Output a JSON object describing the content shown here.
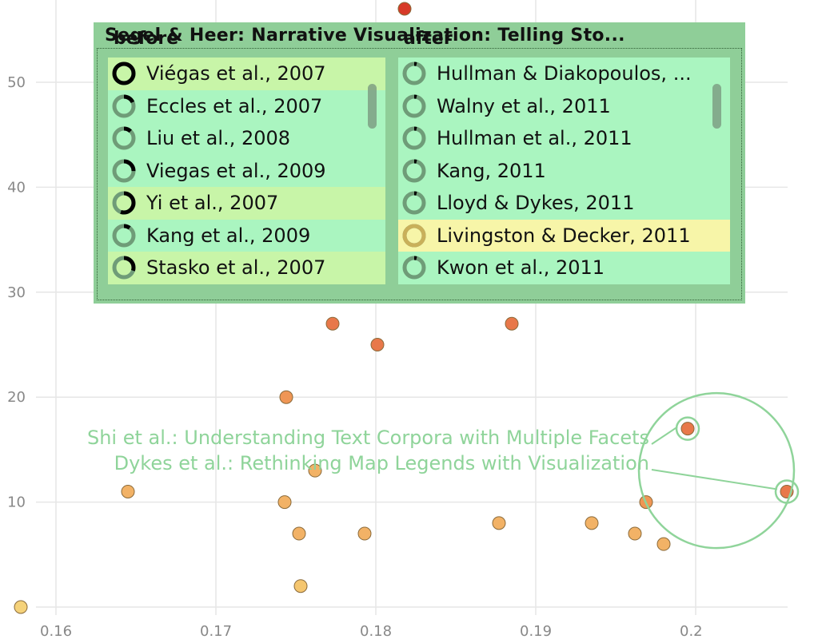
{
  "chart_data": {
    "type": "scatter",
    "xlim": [
      0.158,
      0.206
    ],
    "ylim": [
      0,
      57
    ],
    "xticks": [
      0.16,
      0.17,
      0.18,
      0.19,
      0.2
    ],
    "xtick_labels": [
      "0.16",
      "0.17",
      "0.18",
      "0.19",
      "0.2"
    ],
    "yticks": [
      0,
      10,
      20,
      30,
      40,
      50
    ],
    "ytick_labels": [
      "0",
      "10",
      "20",
      "30",
      "40",
      "50"
    ],
    "grid": true,
    "points": [
      {
        "x": 0.1578,
        "y": 0,
        "color": "#f5d27a"
      },
      {
        "x": 0.1645,
        "y": 11,
        "color": "#f2b266"
      },
      {
        "x": 0.1743,
        "y": 10,
        "color": "#f2b266"
      },
      {
        "x": 0.1744,
        "y": 20,
        "color": "#ef9655"
      },
      {
        "x": 0.1752,
        "y": 7,
        "color": "#f2b266"
      },
      {
        "x": 0.1753,
        "y": 2,
        "color": "#f5c66f"
      },
      {
        "x": 0.1762,
        "y": 13,
        "color": "#f2b266"
      },
      {
        "x": 0.1773,
        "y": 27,
        "color": "#e8784a"
      },
      {
        "x": 0.1793,
        "y": 7,
        "color": "#f2b266"
      },
      {
        "x": 0.1801,
        "y": 25,
        "color": "#e8784a"
      },
      {
        "x": 0.1818,
        "y": 57,
        "color": "#d73a28"
      },
      {
        "x": 0.1877,
        "y": 8,
        "color": "#f2b266"
      },
      {
        "x": 0.1885,
        "y": 27,
        "color": "#e8784a"
      },
      {
        "x": 0.1935,
        "y": 8,
        "color": "#f2b266"
      },
      {
        "x": 0.1962,
        "y": 7,
        "color": "#f2b266"
      },
      {
        "x": 0.1969,
        "y": 10,
        "color": "#ef9655"
      },
      {
        "x": 0.198,
        "y": 6,
        "color": "#f2b266"
      },
      {
        "x": 0.1995,
        "y": 17,
        "color": "#e8784a"
      },
      {
        "x": 0.2057,
        "y": 11,
        "color": "#e8784a"
      }
    ],
    "annotations": [
      {
        "text": "Shi et al.: Understanding Text Corpora with Multiple Facets",
        "x": 0.1995,
        "y": 17
      },
      {
        "text": "Dykes et al.: Rethinking Map Legends with Visualization",
        "x": 0.2057,
        "y": 11
      }
    ],
    "lens": {
      "x": 0.2013,
      "y": 13
    }
  },
  "colors": {
    "annotation": "#8fd49a",
    "panel": "#8fce98",
    "row": "#aaf5c0",
    "row_highlight_green": "#c8f5a8",
    "row_highlight_yellow": "#f7f5a8",
    "grid": "#e6e6e6",
    "axis_text": "#888888"
  },
  "panel": {
    "title": "Segel & Heer:  Narrative Visualization: Telling Sto...",
    "before_label": "before",
    "after_label": "after",
    "before": [
      {
        "label": "Viégas et al., 2007",
        "fill": 1.0,
        "highlight": "green"
      },
      {
        "label": "Eccles et al., 2007",
        "fill": 0.18,
        "highlight": ""
      },
      {
        "label": "Liu et al., 2008",
        "fill": 0.12,
        "highlight": ""
      },
      {
        "label": "Viegas et al., 2009",
        "fill": 0.25,
        "highlight": ""
      },
      {
        "label": "Yi et al., 2007",
        "fill": 0.55,
        "highlight": "green"
      },
      {
        "label": "Kang et al., 2009",
        "fill": 0.1,
        "highlight": ""
      },
      {
        "label": "Stasko et al., 2007",
        "fill": 0.3,
        "highlight": "green"
      }
    ],
    "after": [
      {
        "label": "Hullman & Diakopoulos, ...",
        "fill": 0.04,
        "highlight": ""
      },
      {
        "label": "Walny et al., 2011",
        "fill": 0.04,
        "highlight": ""
      },
      {
        "label": "Hullman et al., 2011",
        "fill": 0.04,
        "highlight": ""
      },
      {
        "label": "Kang, 2011",
        "fill": 0.04,
        "highlight": ""
      },
      {
        "label": "Lloyd & Dykes, 2011",
        "fill": 0.04,
        "highlight": ""
      },
      {
        "label": "Livingston & Decker, 2011",
        "fill": 0.0,
        "highlight": "yellow"
      },
      {
        "label": "Kwon et al., 2011",
        "fill": 0.04,
        "highlight": ""
      }
    ]
  }
}
